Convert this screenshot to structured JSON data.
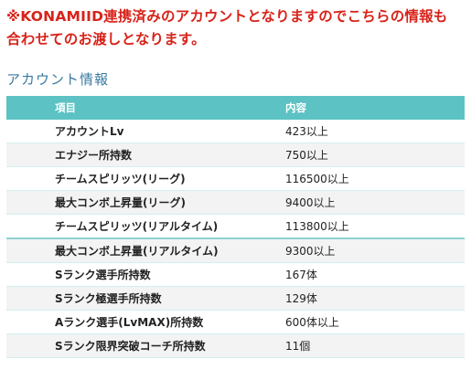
{
  "notice": {
    "line1": "※KONAMIID連携済みのアカウントとなりますのでこちらの情報も",
    "line2": "合わせてのお渡しとなります。"
  },
  "section": {
    "title": "アカウント情報"
  },
  "table": {
    "headers": {
      "item": "項目",
      "value": "内容"
    },
    "rows": [
      {
        "item": "アカウントLv",
        "value": "423以上"
      },
      {
        "item": "エナジー所持数",
        "value": "750以上"
      },
      {
        "item": "チームスピリッツ(リーグ)",
        "value": "116500以上"
      },
      {
        "item": "最大コンボ上昇量(リーグ)",
        "value": "9400以上"
      },
      {
        "item": "チームスピリッツ(リアルタイム)",
        "value": "113800以上"
      },
      {
        "item": "最大コンボ上昇量(リアルタイム)",
        "value": "9300以上"
      },
      {
        "item": "Sランク選手所持数",
        "value": "167体"
      },
      {
        "item": "Sランク極選手所持数",
        "value": "129体"
      },
      {
        "item": "Aランク選手(LvMAX)所持数",
        "value": "600体以上"
      },
      {
        "item": "Sランク限界突破コーチ所持数",
        "value": "11個"
      }
    ]
  },
  "colors": {
    "notice": "#d8231a",
    "section_title": "#3a7aa0",
    "header_bg": "#5cc2c3",
    "stripe_bg": "#f3f3f3"
  }
}
